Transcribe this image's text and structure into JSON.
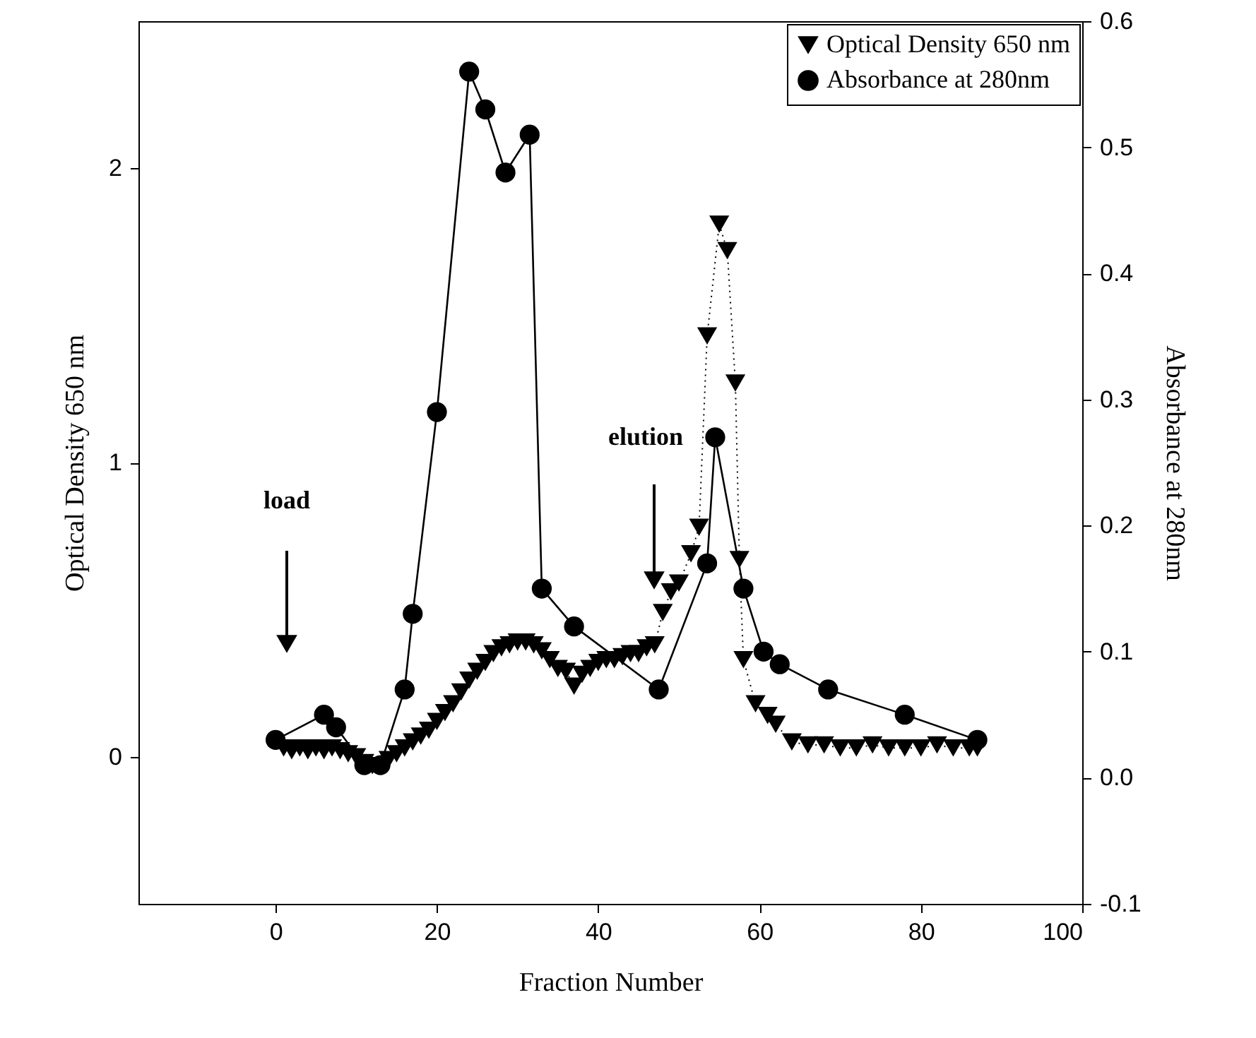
{
  "chart_data": {
    "type": "line",
    "xlabel": "Fraction Number",
    "ylabel": "Optical Density 650 nm",
    "y2label": "Absorbance at 280nm",
    "xlim": [
      -17,
      100
    ],
    "xticks": [
      0,
      20,
      40,
      60,
      80,
      100
    ],
    "ylim": [
      -0.5,
      2.5
    ],
    "yticks": [
      0,
      1,
      2
    ],
    "y2lim": [
      -0.1,
      0.6
    ],
    "y2ticks": [
      {
        "value": -0.1,
        "label": "-0.1"
      },
      {
        "value": 0,
        "label": "0.0"
      },
      0.1,
      0.2,
      0.3,
      0.4,
      0.5,
      0.6
    ],
    "grid": false,
    "legend": "top right",
    "series": [
      {
        "name": "Optical Density 650 nm",
        "color": "#000000",
        "marker": "triangle",
        "line_style": "dotted",
        "x": [
          1,
          2,
          3,
          4,
          5,
          6,
          7,
          8,
          9,
          10,
          11,
          12,
          13,
          14,
          15,
          16,
          17,
          18,
          19,
          20,
          21,
          22,
          23,
          24,
          25,
          26,
          27,
          28,
          29,
          30,
          31,
          32,
          33,
          34,
          35,
          36,
          37,
          38,
          39,
          40,
          41,
          42,
          43,
          44,
          45,
          46,
          47,
          48,
          49,
          50,
          51.5,
          52.5,
          53.5,
          55,
          56,
          57,
          57.5,
          58,
          59.5,
          61,
          62,
          64,
          66,
          68,
          70,
          72,
          74,
          76,
          78,
          80,
          82,
          84,
          86,
          87
        ],
        "values": [
          0.03,
          0.02,
          0.03,
          0.02,
          0.03,
          0.02,
          0.03,
          0.02,
          0.01,
          0.0,
          -0.02,
          -0.03,
          -0.03,
          -0.01,
          0.01,
          0.03,
          0.05,
          0.07,
          0.09,
          0.12,
          0.15,
          0.18,
          0.22,
          0.26,
          0.29,
          0.32,
          0.35,
          0.37,
          0.38,
          0.39,
          0.39,
          0.38,
          0.36,
          0.33,
          0.3,
          0.29,
          0.24,
          0.28,
          0.3,
          0.32,
          0.33,
          0.33,
          0.34,
          0.35,
          0.35,
          0.37,
          0.38,
          0.49,
          0.56,
          0.59,
          0.69,
          0.78,
          1.43,
          1.81,
          1.72,
          1.27,
          0.67,
          0.33,
          0.18,
          0.14,
          0.11,
          0.05,
          0.04,
          0.04,
          0.03,
          0.03,
          0.04,
          0.03,
          0.03,
          0.03,
          0.04,
          0.03,
          0.03,
          0.03
        ]
      },
      {
        "name": "Absorbance at 280nm",
        "color": "#000000",
        "marker": "circle",
        "line_style": "solid",
        "axis": "y2",
        "x": [
          0,
          6,
          7.5,
          11,
          13,
          16,
          17,
          20,
          24,
          26,
          28.5,
          31.5,
          33,
          37,
          47.5,
          53.5,
          54.5,
          58,
          60.5,
          62.5,
          68.5,
          78,
          87
        ],
        "values": [
          0.03,
          0.05,
          0.04,
          0.01,
          0.01,
          0.07,
          0.13,
          0.29,
          0.56,
          0.53,
          0.48,
          0.51,
          0.15,
          0.12,
          0.07,
          0.17,
          0.27,
          0.15,
          0.1,
          0.09,
          0.07,
          0.05,
          0.03
        ]
      }
    ],
    "annotations": [
      "load",
      "elution"
    ]
  }
}
